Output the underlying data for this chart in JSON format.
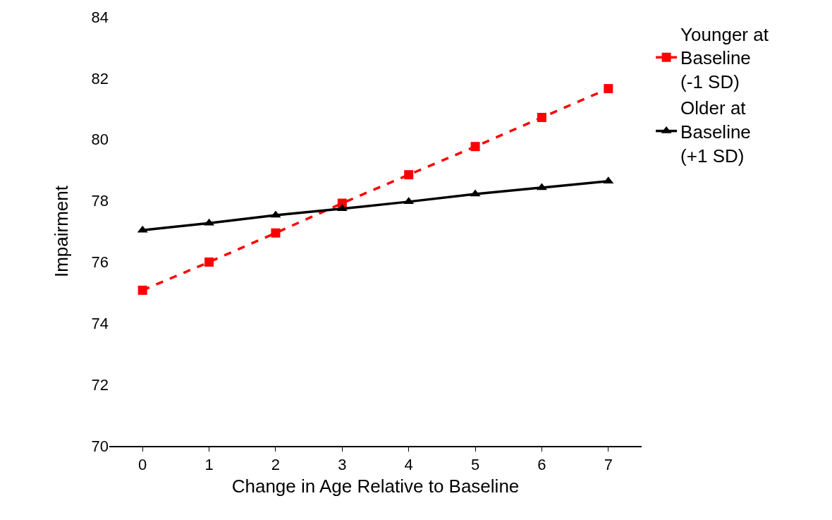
{
  "chart_data": {
    "type": "line",
    "xlabel": "Change in Age Relative to Baseline",
    "ylabel": "Impairment",
    "x": [
      0,
      1,
      2,
      3,
      4,
      5,
      6,
      7
    ],
    "series": [
      {
        "name": "Younger at Baseline (-1 SD)",
        "color": "#ff0000",
        "values": [
          75.08,
          76.0,
          76.95,
          77.92,
          78.85,
          79.77,
          80.72,
          81.66
        ],
        "marker": "square",
        "line_style": "dashed"
      },
      {
        "name": "Older at Baseline (+1 SD)",
        "color": "#000000",
        "values": [
          77.04,
          77.27,
          77.53,
          77.74,
          77.97,
          78.22,
          78.43,
          78.64
        ],
        "marker": "triangle",
        "line_style": "solid"
      }
    ],
    "xlim": [
      -0.5,
      7.5
    ],
    "xticks": [
      0,
      1,
      2,
      3,
      4,
      5,
      6,
      7
    ],
    "ylim": [
      70,
      84
    ],
    "yticks": [
      70,
      72,
      74,
      76,
      78,
      80,
      82,
      84
    ],
    "grid": false,
    "legend": "top right"
  }
}
